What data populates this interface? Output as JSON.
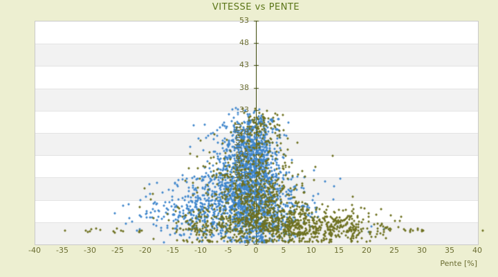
{
  "colors": {
    "background": "#edefd1",
    "title_text": "#5a7517",
    "tick_text": "#6a6c31",
    "axis_line": "#3e4a0a",
    "plot_background": "#ffffff",
    "band_alt": "#f2f2f2",
    "gridline": "#e3e3e3",
    "plot_border": "#c9c9c9",
    "series_blue": "#3f86cc",
    "series_olive": "#6d701f"
  },
  "chart_data": {
    "type": "scatter",
    "title": "VITESSE vs PENTE",
    "xlabel": "Pente [%]",
    "ylabel": "Vitesse [km/h]",
    "xlim": [
      -40,
      40
    ],
    "ylim": [
      3,
      53
    ],
    "xticks": [
      -40,
      -35,
      -30,
      -25,
      -20,
      -15,
      -10,
      -5,
      0,
      5,
      10,
      15,
      20,
      25,
      30,
      35,
      40
    ],
    "yticks": [
      53,
      48,
      43,
      38,
      33,
      28,
      23,
      18,
      13,
      8,
      3
    ],
    "grid": "horizontal-bands-alternating",
    "legend": "none",
    "marker": {
      "shape": "diamond",
      "size": 4
    },
    "axis_style": "center-vertical-axis-at-x0",
    "series": [
      {
        "name": "series-blue",
        "color": "#3f86cc",
        "clusters": [
          {
            "n": 950,
            "cx": -1.2,
            "cy": 16.0,
            "sx": 2.9,
            "sy": 5.2
          },
          {
            "n": 350,
            "cx": -1.0,
            "cy": 24.0,
            "sx": 2.3,
            "sy": 3.0
          },
          {
            "n": 300,
            "cx": -5.5,
            "cy": 13.0,
            "sx": 4.5,
            "sy": 4.0
          },
          {
            "n": 190,
            "cx": -9.0,
            "cy": 9.5,
            "sx": 5.0,
            "sy": 2.8
          },
          {
            "n": 130,
            "cx": -0.5,
            "cy": 28.5,
            "sx": 2.1,
            "sy": 2.0
          },
          {
            "n": 170,
            "cx": 2.5,
            "cy": 9.0,
            "sx": 3.6,
            "sy": 2.8
          },
          {
            "n": 90,
            "cx": 6.0,
            "cy": 12.5,
            "sx": 3.6,
            "sy": 3.2
          },
          {
            "n": 80,
            "cx": -14.0,
            "cy": 10.0,
            "sx": 5.2,
            "sy": 3.4
          },
          {
            "n": 70,
            "cx": 0.2,
            "cy": 6.0,
            "sx": 1.6,
            "sy": 1.8
          },
          {
            "n": 30,
            "cx": -5.5,
            "cy": 27.5,
            "sx": 2.6,
            "sy": 2.0
          }
        ],
        "outliers": [
          [
            -21.5,
            6.0
          ],
          [
            -21.0,
            6.2
          ],
          [
            20.4,
            5.7
          ],
          [
            20.9,
            6.9
          ],
          [
            23.1,
            6.3
          ],
          [
            -24.0,
            11.5
          ],
          [
            -25.5,
            9.8
          ],
          [
            12.5,
            17.0
          ],
          [
            10.5,
            19.5
          ]
        ]
      },
      {
        "name": "series-olive",
        "color": "#6d701f",
        "clusters": [
          {
            "n": 320,
            "cx": 0.6,
            "cy": 13.0,
            "sx": 3.0,
            "sy": 4.6
          },
          {
            "n": 450,
            "cx": 7.0,
            "cy": 7.0,
            "sx": 5.6,
            "sy": 2.3
          },
          {
            "n": 170,
            "cx": 15.0,
            "cy": 6.5,
            "sx": 4.6,
            "sy": 1.7
          },
          {
            "n": 210,
            "cx": -7.0,
            "cy": 7.0,
            "sx": 5.6,
            "sy": 2.3
          },
          {
            "n": 190,
            "cx": -2.0,
            "cy": 18.0,
            "sx": 5.6,
            "sy": 4.6
          },
          {
            "n": 70,
            "cx": 0.6,
            "cy": 27.0,
            "sx": 2.3,
            "sy": 2.6
          },
          {
            "n": 45,
            "cx": 1.0,
            "cy": 30.2,
            "sx": 1.6,
            "sy": 1.3
          },
          {
            "n": 55,
            "uniform_x": [
              -32,
              32
            ],
            "cy": 5.9,
            "sy": 0.25
          }
        ],
        "outliers": [
          [
            -34.5,
            5.9
          ],
          [
            -30.8,
            5.9
          ],
          [
            41.0,
            5.9
          ],
          [
            24.0,
            6.2
          ],
          [
            27.0,
            5.9
          ],
          [
            30.0,
            6.1
          ],
          [
            21.8,
            9.5
          ],
          [
            22.5,
            7.0
          ],
          [
            19.0,
            11.0
          ],
          [
            17.5,
            13.5
          ],
          [
            -19.0,
            13.0
          ],
          [
            -21.0,
            11.2
          ],
          [
            -6.0,
            25.5
          ],
          [
            -4.5,
            28.0
          ]
        ]
      }
    ]
  }
}
